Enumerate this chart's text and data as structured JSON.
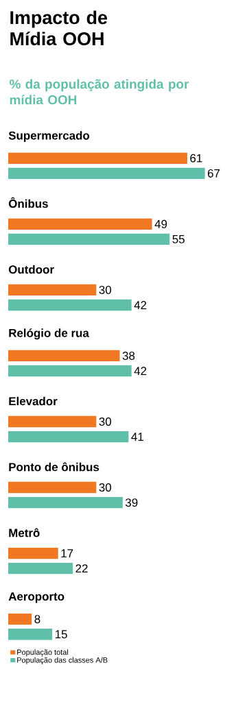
{
  "chart_data": {
    "type": "bar",
    "orientation": "horizontal",
    "title": "Impacto de Mídia OOH",
    "subtitle": "% da população atingida por mídia OOH",
    "categories": [
      "Supermercado",
      "Ônibus",
      "Outdoor",
      "Relógio de rua",
      "Elevador",
      "Ponto de ônibus",
      "Metrô",
      "Aeroporto"
    ],
    "series": [
      {
        "name": "População total",
        "color": "#f07822",
        "values": [
          61,
          49,
          30,
          38,
          30,
          30,
          17,
          8
        ]
      },
      {
        "name": "População das classes A/B",
        "color": "#5fbfa8",
        "values": [
          67,
          55,
          42,
          42,
          41,
          39,
          22,
          15
        ]
      }
    ],
    "data_labels": true,
    "legend": "bottom left"
  }
}
